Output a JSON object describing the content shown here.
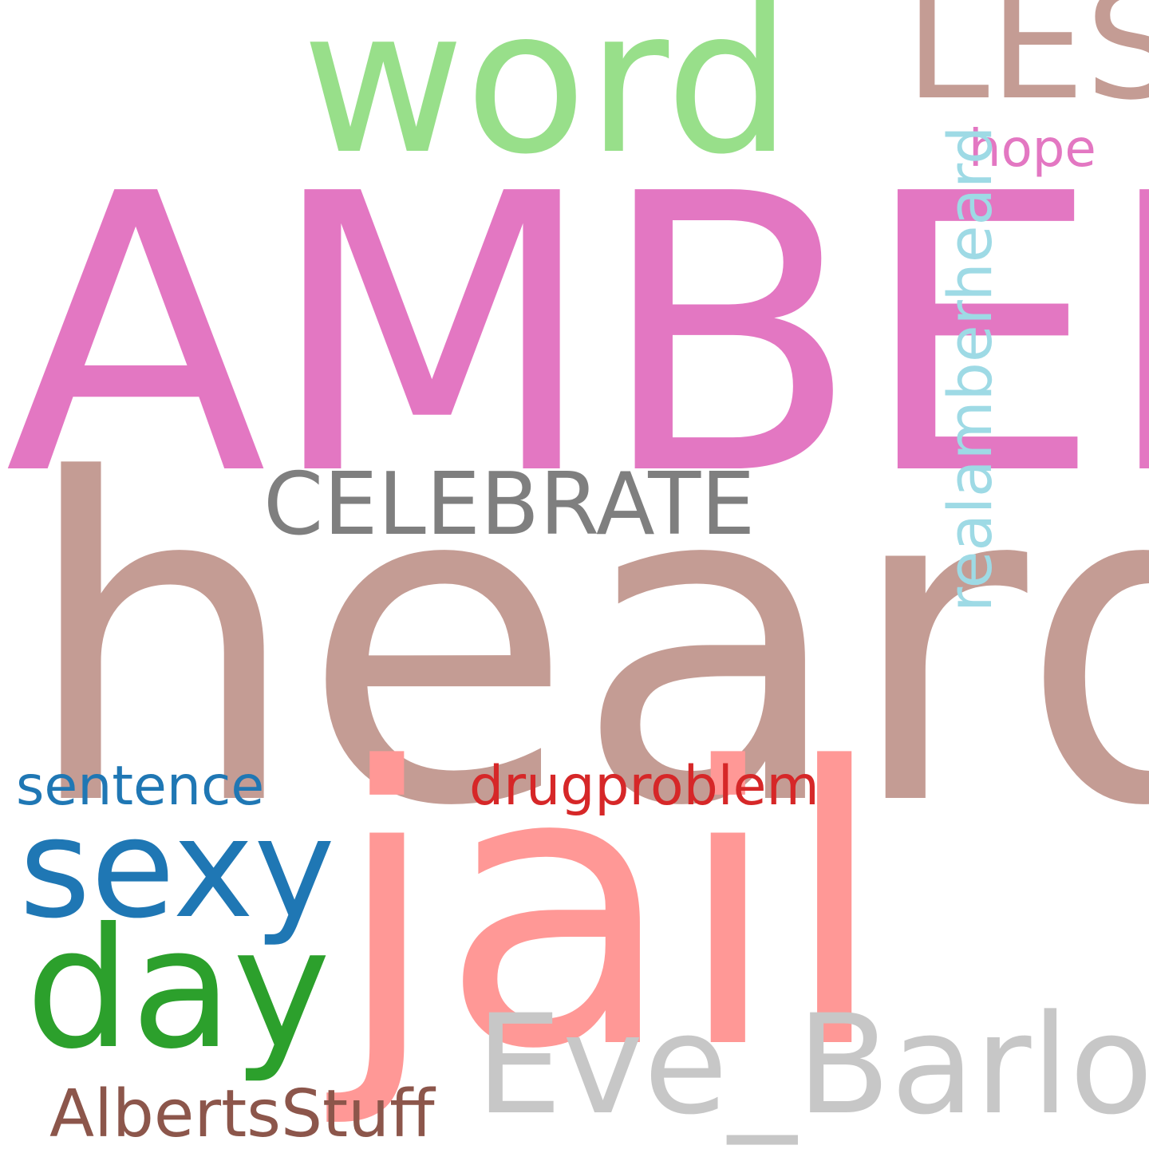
{
  "words": [
    {
      "id": "amber",
      "text": "AMBER",
      "color": "#e377c2"
    },
    {
      "id": "heard",
      "text": "heard",
      "color": "#c49c94"
    },
    {
      "id": "jail",
      "text": "jail",
      "color": "#ff9896"
    },
    {
      "id": "word",
      "text": "word",
      "color": "#98df8a"
    },
    {
      "id": "les",
      "text": "LES",
      "color": "#c49c94"
    },
    {
      "id": "hope",
      "text": "hope",
      "color": "#e377c2"
    },
    {
      "id": "realamberheard",
      "text": "realamberheard",
      "color": "#9edae5",
      "orientation": "vertical"
    },
    {
      "id": "celebrate",
      "text": "CELEBRATE",
      "color": "#7f7f7f"
    },
    {
      "id": "sexy",
      "text": "sexy",
      "color": "#1f77b4"
    },
    {
      "id": "day",
      "text": "day",
      "color": "#2ca02c"
    },
    {
      "id": "sentence",
      "text": "sentence",
      "color": "#1f77b4"
    },
    {
      "id": "drugproblem",
      "text": "drugproblem",
      "color": "#d62728"
    },
    {
      "id": "eve_barlow",
      "text": "Eve_Barlow",
      "color": "#c7c7c7"
    },
    {
      "id": "albertsstuff",
      "text": "AlbertsStuff",
      "color": "#8c564b"
    }
  ]
}
